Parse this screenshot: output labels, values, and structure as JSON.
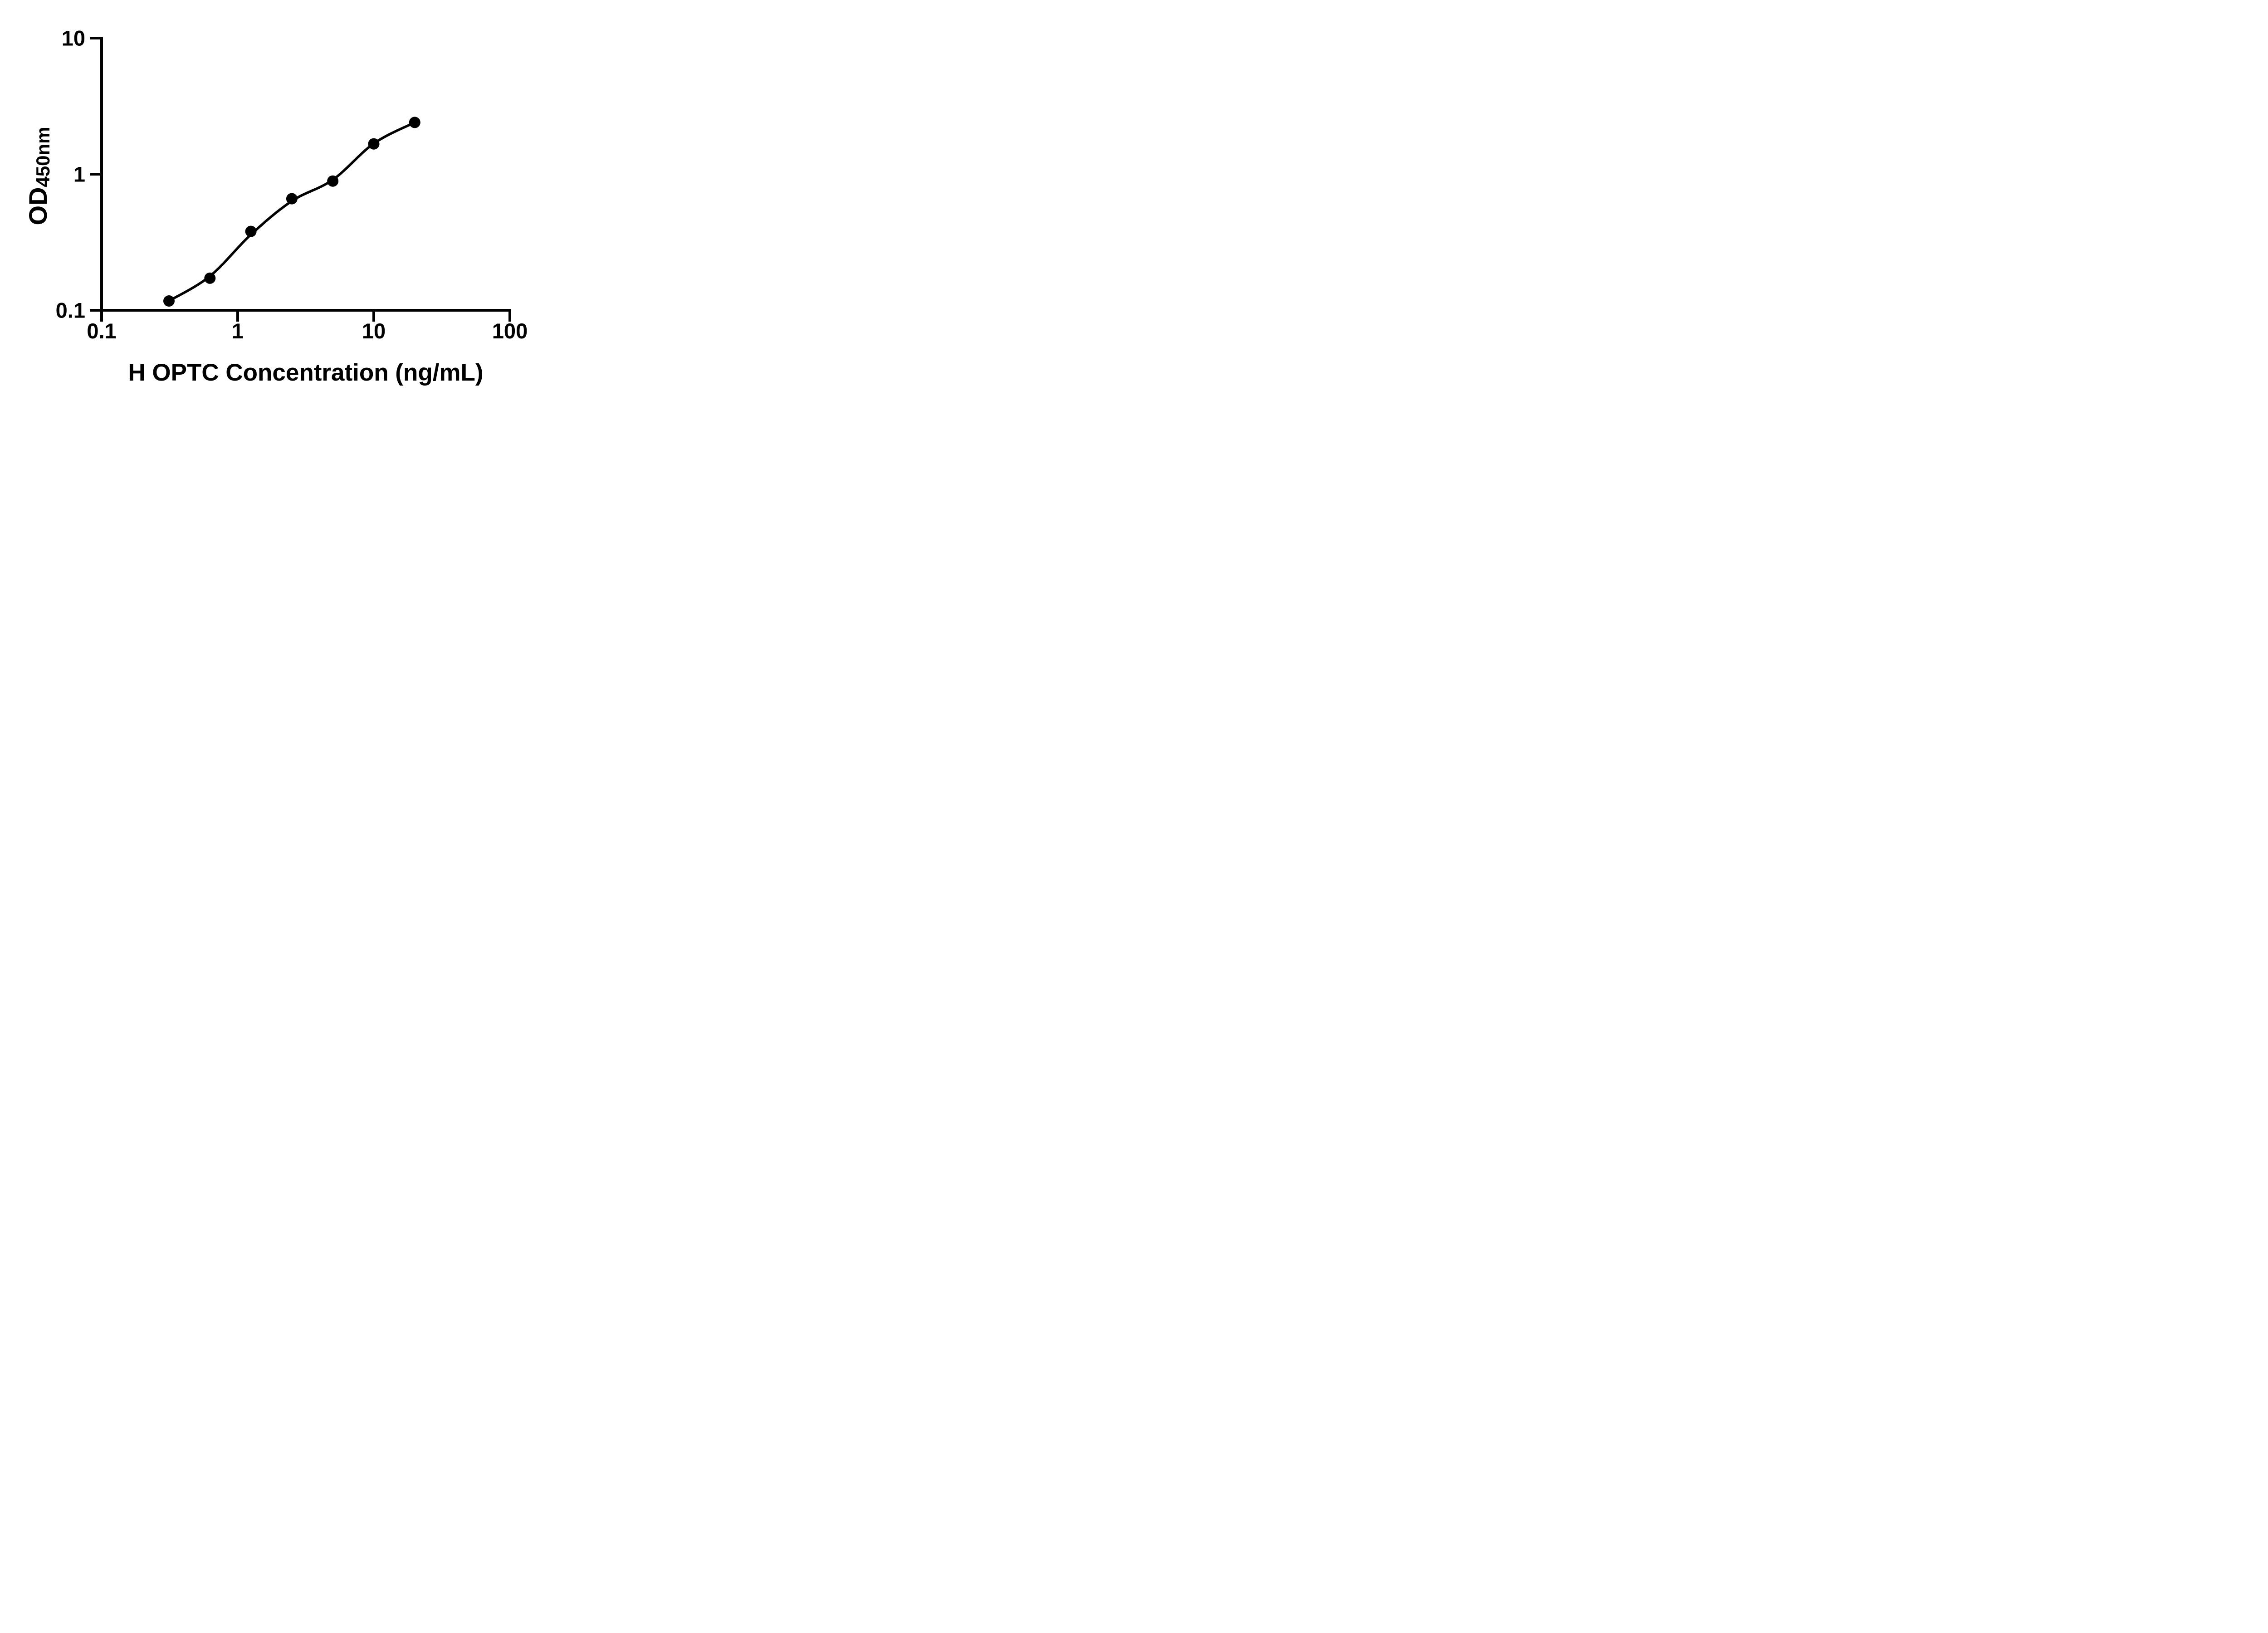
{
  "figure": {
    "background": "#ffffff",
    "foreground": "#000000"
  },
  "chart_data": {
    "type": "scatter",
    "title": "",
    "xlabel": "H OPTC Concentration (ng/mL)",
    "ylabel_main": "OD",
    "ylabel_sub": "450nm",
    "x_scale": "log10",
    "y_scale": "log10",
    "xlim": [
      0.1,
      100
    ],
    "ylim": [
      0.1,
      10
    ],
    "x_ticks": [
      0.1,
      1,
      10,
      100
    ],
    "x_tick_labels": [
      "0.1",
      "1",
      "10",
      "100"
    ],
    "y_ticks": [
      0.1,
      1,
      10
    ],
    "y_tick_labels": [
      "0.1",
      "1",
      "10"
    ],
    "grid": false,
    "legend": null,
    "marker": {
      "shape": "filled-circle",
      "color": "#000000"
    },
    "line_color": "#000000",
    "series": [
      {
        "points": [
          {
            "x": 0.3125,
            "y": 0.117
          },
          {
            "x": 0.625,
            "y": 0.172
          },
          {
            "x": 1.25,
            "y": 0.38
          },
          {
            "x": 2.5,
            "y": 0.66
          },
          {
            "x": 5,
            "y": 0.89
          },
          {
            "x": 10,
            "y": 1.67
          },
          {
            "x": 20,
            "y": 2.4
          }
        ]
      }
    ],
    "fit_curve": [
      {
        "x": 0.3125,
        "y": 0.117
      },
      {
        "x": 0.625,
        "y": 0.178
      },
      {
        "x": 1.25,
        "y": 0.36
      },
      {
        "x": 2.5,
        "y": 0.635
      },
      {
        "x": 5,
        "y": 0.91
      },
      {
        "x": 10,
        "y": 1.68
      },
      {
        "x": 20,
        "y": 2.4
      }
    ]
  }
}
